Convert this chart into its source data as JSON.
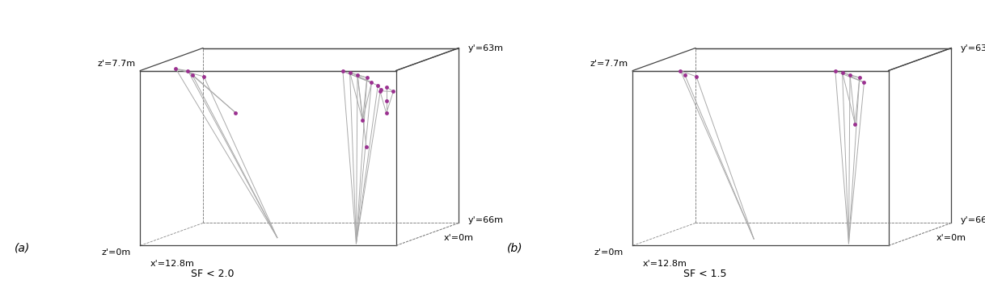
{
  "panel_a_label": "(a)",
  "panel_b_label": "(b)",
  "sf_a": "SF < 2.0",
  "sf_b": "SF < 1.5",
  "box_labels": {
    "z_top": "z'=7.7m",
    "z_bot": "z'=0m",
    "x_left": "x'=12.8m",
    "x_right": "x'=0m",
    "y_near": "y'=66m",
    "y_far": "y'=63m"
  },
  "line_color": "#aaaaaa",
  "box_line_color": "#444444",
  "node_color": "#9B3090",
  "background_color": "#ffffff",
  "font_size_label": 8,
  "font_size_sf": 9,
  "font_size_panel": 10
}
